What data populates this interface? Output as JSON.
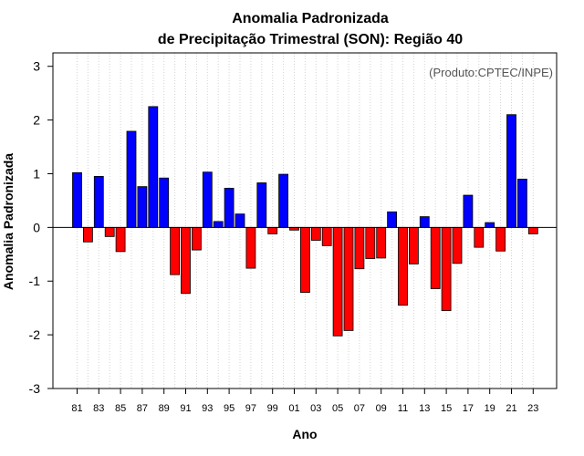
{
  "chart_data": {
    "type": "bar",
    "title_line1": "Anomalia Padronizada",
    "title_line2": "de Precipitação Trimestral (SON): Região 40",
    "xlabel": "Ano",
    "ylabel": "Anomalia Padronizada",
    "credit": "(Produto:CPTEC/INPE)",
    "ylim": [
      -3,
      3.25
    ],
    "yticks": [
      "-3",
      "-2",
      "-1",
      "0",
      "1",
      "2",
      "3"
    ],
    "ytick_values": [
      -3,
      -2,
      -1,
      0,
      1,
      2,
      3
    ],
    "categories": [
      "81",
      "82",
      "83",
      "84",
      "85",
      "86",
      "87",
      "88",
      "89",
      "90",
      "91",
      "92",
      "93",
      "94",
      "95",
      "96",
      "97",
      "98",
      "99",
      "00",
      "01",
      "02",
      "03",
      "04",
      "05",
      "06",
      "07",
      "08",
      "09",
      "10",
      "11",
      "12",
      "13",
      "14",
      "15",
      "16",
      "17",
      "18",
      "19",
      "20",
      "21",
      "22",
      "23"
    ],
    "values": [
      1.02,
      -0.27,
      0.95,
      -0.17,
      -0.45,
      1.79,
      0.76,
      2.25,
      0.92,
      -0.88,
      -1.23,
      -0.42,
      1.03,
      0.11,
      0.73,
      0.25,
      -0.76,
      0.83,
      -0.12,
      0.99,
      -0.05,
      -1.21,
      -0.24,
      -0.34,
      -2.02,
      -1.92,
      -0.77,
      -0.58,
      -0.57,
      0.29,
      -1.45,
      -0.68,
      0.2,
      -1.14,
      -1.55,
      -0.67,
      0.6,
      -0.37,
      0.09,
      -0.44,
      2.1,
      0.9,
      -0.12
    ],
    "xtick_labels": [
      "81",
      "83",
      "85",
      "87",
      "89",
      "91",
      "93",
      "95",
      "97",
      "99",
      "01",
      "03",
      "05",
      "07",
      "09",
      "11",
      "13",
      "15",
      "17",
      "19",
      "21",
      "23"
    ],
    "colors": {
      "positive": "#0000ff",
      "negative": "#ff0000",
      "grid": "#d3d3d3",
      "zero_line": "#000000"
    }
  }
}
